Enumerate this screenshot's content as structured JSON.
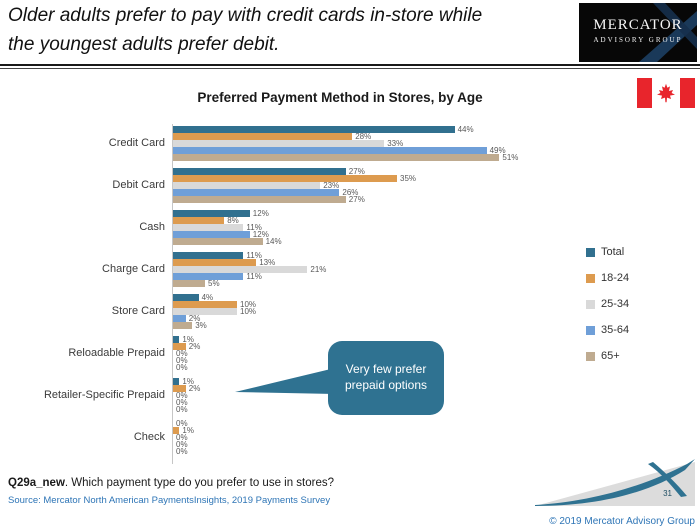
{
  "header": {
    "title_line1": "Older adults prefer to pay with credit cards in-store while",
    "title_line2": "the youngest adults prefer debit.",
    "logo_name": "MERCATOR",
    "logo_subtitle": "ADVISORY GROUP"
  },
  "chart_data": {
    "type": "bar",
    "orientation": "horizontal",
    "title": "Preferred Payment Method in Stores, by Age",
    "categories": [
      "Credit Card",
      "Debit Card",
      "Cash",
      "Charge Card",
      "Store Card",
      "Reloadable Prepaid",
      "Retailer-Specific Prepaid",
      "Check"
    ],
    "series": [
      {
        "name": "Total",
        "color": "#31708f",
        "values": [
          44,
          27,
          12,
          11,
          4,
          1,
          1,
          0
        ]
      },
      {
        "name": "18-24",
        "color": "#dd9b4f",
        "values": [
          28,
          35,
          8,
          13,
          10,
          2,
          2,
          1
        ]
      },
      {
        "name": "25-34",
        "color": "#d9d9d9",
        "values": [
          33,
          23,
          11,
          21,
          10,
          0,
          0,
          0
        ]
      },
      {
        "name": "35-64",
        "color": "#6f9fd8",
        "values": [
          49,
          26,
          12,
          11,
          2,
          0,
          0,
          0
        ]
      },
      {
        "name": "65+",
        "color": "#bfab90",
        "values": [
          51,
          27,
          14,
          5,
          3,
          0,
          0,
          0
        ]
      }
    ],
    "value_suffix": "%",
    "xlim": [
      0,
      55
    ],
    "grid": false,
    "legend_position": "right",
    "annotation": "Very few prefer prepaid options"
  },
  "callout": {
    "text": "Very few prefer prepaid options",
    "color": "#2f7291"
  },
  "footer": {
    "question_label": "Q29a_new",
    "question_text": ". Which payment type do you prefer to use in stores?",
    "source": "Source: Mercator North American PaymentsInsights, 2019 Payments Survey",
    "page_number": "31",
    "copyright": "© 2019 Mercator Advisory Group"
  },
  "colors": {
    "accent_teal": "#2f7291",
    "source_blue": "#2e75b6",
    "flag_red": "#e8252c",
    "logo_swoosh_blue": "#1d3f63"
  }
}
